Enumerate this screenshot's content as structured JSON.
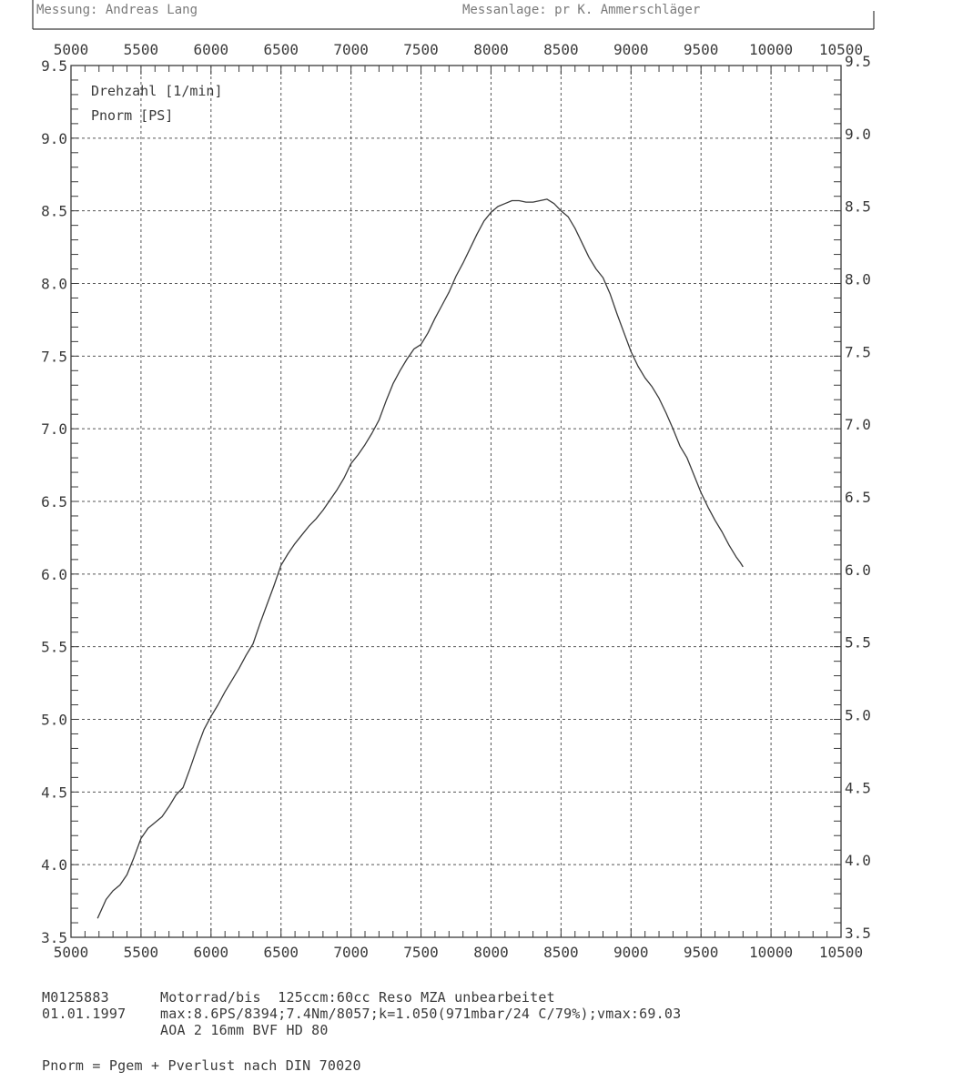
{
  "header": {
    "left_text": "Messung:  Andreas Lang",
    "right_text": "Messanlage:  pr  K. Ammerschläger"
  },
  "chart_data": {
    "type": "line",
    "title": "",
    "legend": [
      "Drehzahl [1/min]",
      "Pnorm [PS]"
    ],
    "legend_position": "top-left",
    "xlabel": "",
    "ylabel": "",
    "xlim": [
      5000,
      10500
    ],
    "ylim": [
      3.5,
      9.5
    ],
    "x_ticks": [
      5000,
      5500,
      6000,
      6500,
      7000,
      7500,
      8000,
      8500,
      9000,
      9500,
      10000,
      10500
    ],
    "x_tick_labels": [
      "5000",
      "5500",
      "6000",
      "6500",
      "7000",
      "7500",
      "8000",
      "8500",
      "9000",
      "9500",
      "10000",
      "10500"
    ],
    "y_ticks": [
      3.5,
      4.0,
      4.5,
      5.0,
      5.5,
      6.0,
      6.5,
      7.0,
      7.5,
      8.0,
      8.5,
      9.0,
      9.5
    ],
    "y_tick_labels": [
      "3.5",
      "4.0",
      "4.5",
      "5.0",
      "5.5",
      "6.0",
      "6.5",
      "7.0",
      "7.5",
      "8.0",
      "8.5",
      "9.0",
      "9.5"
    ],
    "grid": true,
    "series": [
      {
        "name": "Pnorm [PS]",
        "color": "#3a3a3a",
        "points": [
          [
            5190,
            3.63
          ],
          [
            5250,
            3.76
          ],
          [
            5300,
            3.82
          ],
          [
            5350,
            3.86
          ],
          [
            5400,
            3.93
          ],
          [
            5450,
            4.05
          ],
          [
            5500,
            4.18
          ],
          [
            5550,
            4.25
          ],
          [
            5600,
            4.29
          ],
          [
            5650,
            4.33
          ],
          [
            5700,
            4.4
          ],
          [
            5750,
            4.48
          ],
          [
            5800,
            4.53
          ],
          [
            5850,
            4.66
          ],
          [
            5900,
            4.8
          ],
          [
            5950,
            4.93
          ],
          [
            6000,
            5.02
          ],
          [
            6050,
            5.1
          ],
          [
            6100,
            5.19
          ],
          [
            6150,
            5.27
          ],
          [
            6200,
            5.35
          ],
          [
            6250,
            5.44
          ],
          [
            6300,
            5.52
          ],
          [
            6350,
            5.66
          ],
          [
            6400,
            5.79
          ],
          [
            6450,
            5.92
          ],
          [
            6500,
            6.06
          ],
          [
            6550,
            6.14
          ],
          [
            6600,
            6.21
          ],
          [
            6650,
            6.27
          ],
          [
            6700,
            6.33
          ],
          [
            6750,
            6.38
          ],
          [
            6800,
            6.44
          ],
          [
            6850,
            6.51
          ],
          [
            6900,
            6.58
          ],
          [
            6950,
            6.66
          ],
          [
            7000,
            6.76
          ],
          [
            7050,
            6.82
          ],
          [
            7100,
            6.89
          ],
          [
            7150,
            6.97
          ],
          [
            7200,
            7.06
          ],
          [
            7250,
            7.19
          ],
          [
            7300,
            7.31
          ],
          [
            7350,
            7.4
          ],
          [
            7400,
            7.48
          ],
          [
            7450,
            7.55
          ],
          [
            7500,
            7.58
          ],
          [
            7550,
            7.66
          ],
          [
            7600,
            7.76
          ],
          [
            7650,
            7.85
          ],
          [
            7700,
            7.94
          ],
          [
            7750,
            8.05
          ],
          [
            7800,
            8.14
          ],
          [
            7850,
            8.24
          ],
          [
            7900,
            8.34
          ],
          [
            7950,
            8.43
          ],
          [
            8000,
            8.49
          ],
          [
            8050,
            8.53
          ],
          [
            8100,
            8.55
          ],
          [
            8150,
            8.57
          ],
          [
            8200,
            8.57
          ],
          [
            8250,
            8.56
          ],
          [
            8300,
            8.56
          ],
          [
            8350,
            8.57
          ],
          [
            8400,
            8.58
          ],
          [
            8450,
            8.55
          ],
          [
            8500,
            8.5
          ],
          [
            8550,
            8.46
          ],
          [
            8600,
            8.38
          ],
          [
            8650,
            8.28
          ],
          [
            8700,
            8.18
          ],
          [
            8750,
            8.1
          ],
          [
            8800,
            8.04
          ],
          [
            8850,
            7.93
          ],
          [
            8900,
            7.79
          ],
          [
            8950,
            7.66
          ],
          [
            9000,
            7.53
          ],
          [
            9050,
            7.43
          ],
          [
            9100,
            7.35
          ],
          [
            9150,
            7.29
          ],
          [
            9200,
            7.21
          ],
          [
            9250,
            7.11
          ],
          [
            9300,
            7.0
          ],
          [
            9350,
            6.88
          ],
          [
            9400,
            6.8
          ],
          [
            9450,
            6.68
          ],
          [
            9500,
            6.56
          ],
          [
            9550,
            6.46
          ],
          [
            9600,
            6.37
          ],
          [
            9650,
            6.29
          ],
          [
            9700,
            6.2
          ],
          [
            9750,
            6.12
          ],
          [
            9780,
            6.08
          ],
          [
            9800,
            6.05
          ]
        ]
      }
    ]
  },
  "info": {
    "id": "M0125883",
    "date": "01.01.1997",
    "line1": "Motorrad/bis  125ccm:60cc Reso MZA unbearbeitet",
    "line2": "max:8.6PS/8394;7.4Nm/8057;k=1.050(971mbar/24 C/79%);vmax:69.03",
    "line3": "AOA 2 16mm BVF HD 80",
    "footer": "Pnorm = Pgem + Pverlust nach DIN 70020"
  }
}
